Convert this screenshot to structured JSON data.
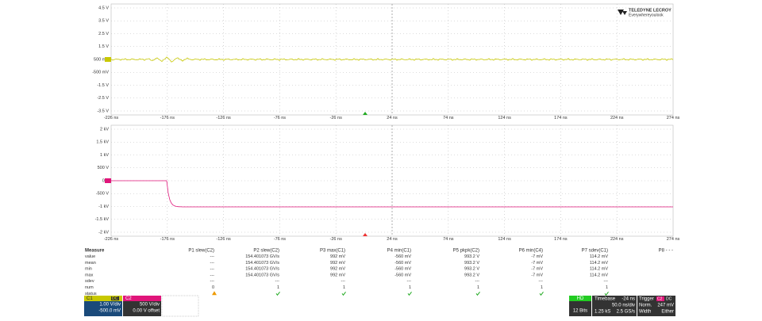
{
  "plots": [
    {
      "channel": "C1",
      "y_labels": [
        "4.5 V",
        "3.5 V",
        "2.5 V",
        "1.5 V",
        "500 mV",
        "-500 mV",
        "-1.5 V",
        "-2.5 V",
        "-3.5 V"
      ],
      "x_labels": [
        "-226 ns",
        "-176 ns",
        "-126 ns",
        "-76 ns",
        "-26 ns",
        "24 ns",
        "74 ns",
        "124 ns",
        "174 ns",
        "224 ns",
        "274 ns"
      ]
    },
    {
      "channel": "C2",
      "y_labels": [
        "2 kV",
        "1.5 kV",
        "1 kV",
        "500 V",
        "0 V",
        "-500 V",
        "-1 kV",
        "-1.5 kV",
        "-2 kV"
      ],
      "x_labels": [
        "-226 ns",
        "-176 ns",
        "-126 ns",
        "-76 ns",
        "-26 ns",
        "24 ns",
        "74 ns",
        "124 ns",
        "174 ns",
        "224 ns",
        "274 ns"
      ]
    }
  ],
  "logo": {
    "brand": "TELEDYNE LECROY",
    "tagline": "Everywhereyoulook"
  },
  "measure": {
    "header": [
      "Measure",
      "P1 slew(C2)",
      "P2 slew(C2)",
      "P3 max(C1)",
      "P4 min(C1)",
      "P5 pkpk(C2)",
      "P6 min(C4)",
      "P7 sdev(C1)",
      "P8 - - -"
    ],
    "rows": [
      [
        "value",
        "---",
        "154.401073 GV/s",
        "992 mV",
        "-560 mV",
        "993.2 V",
        "-7 mV",
        "114.2 mV"
      ],
      [
        "mean",
        "---",
        "154.401073 GV/s",
        "992 mV",
        "-560 mV",
        "993.2 V",
        "-7 mV",
        "114.2 mV"
      ],
      [
        "min",
        "---",
        "154.401073 GV/s",
        "992 mV",
        "-560 mV",
        "993.2 V",
        "-7 mV",
        "114.2 mV"
      ],
      [
        "max",
        "---",
        "154.401073 GV/s",
        "992 mV",
        "-560 mV",
        "993.2 V",
        "-7 mV",
        "114.2 mV"
      ],
      [
        "sdev",
        "---",
        "---",
        "---",
        "---",
        "---",
        "---",
        "---"
      ],
      [
        "num",
        "0",
        "1",
        "1",
        "1",
        "1",
        "1",
        "1"
      ],
      [
        "status"
      ]
    ]
  },
  "channels": [
    {
      "name": "C1",
      "coupling": "DC",
      "scale": "1.00 V/div",
      "offset": "-500.0 mV"
    },
    {
      "name": "C2",
      "scale": "500 V/div",
      "offset": "0.00 V offset"
    }
  ],
  "acquisition": {
    "mode": "HD",
    "bits": "12 Bits"
  },
  "timebase": {
    "label": "Timebase",
    "delay": "-24 ns",
    "scale": "50.0 ns/div",
    "samples": "1.25 kS",
    "rate": "2.5 GS/s"
  },
  "trigger": {
    "label": "Trigger",
    "source": "C2",
    "coupling": "DC",
    "mode": "Norm.",
    "level": "247 mV",
    "type": "Width",
    "slope": "Either"
  }
}
